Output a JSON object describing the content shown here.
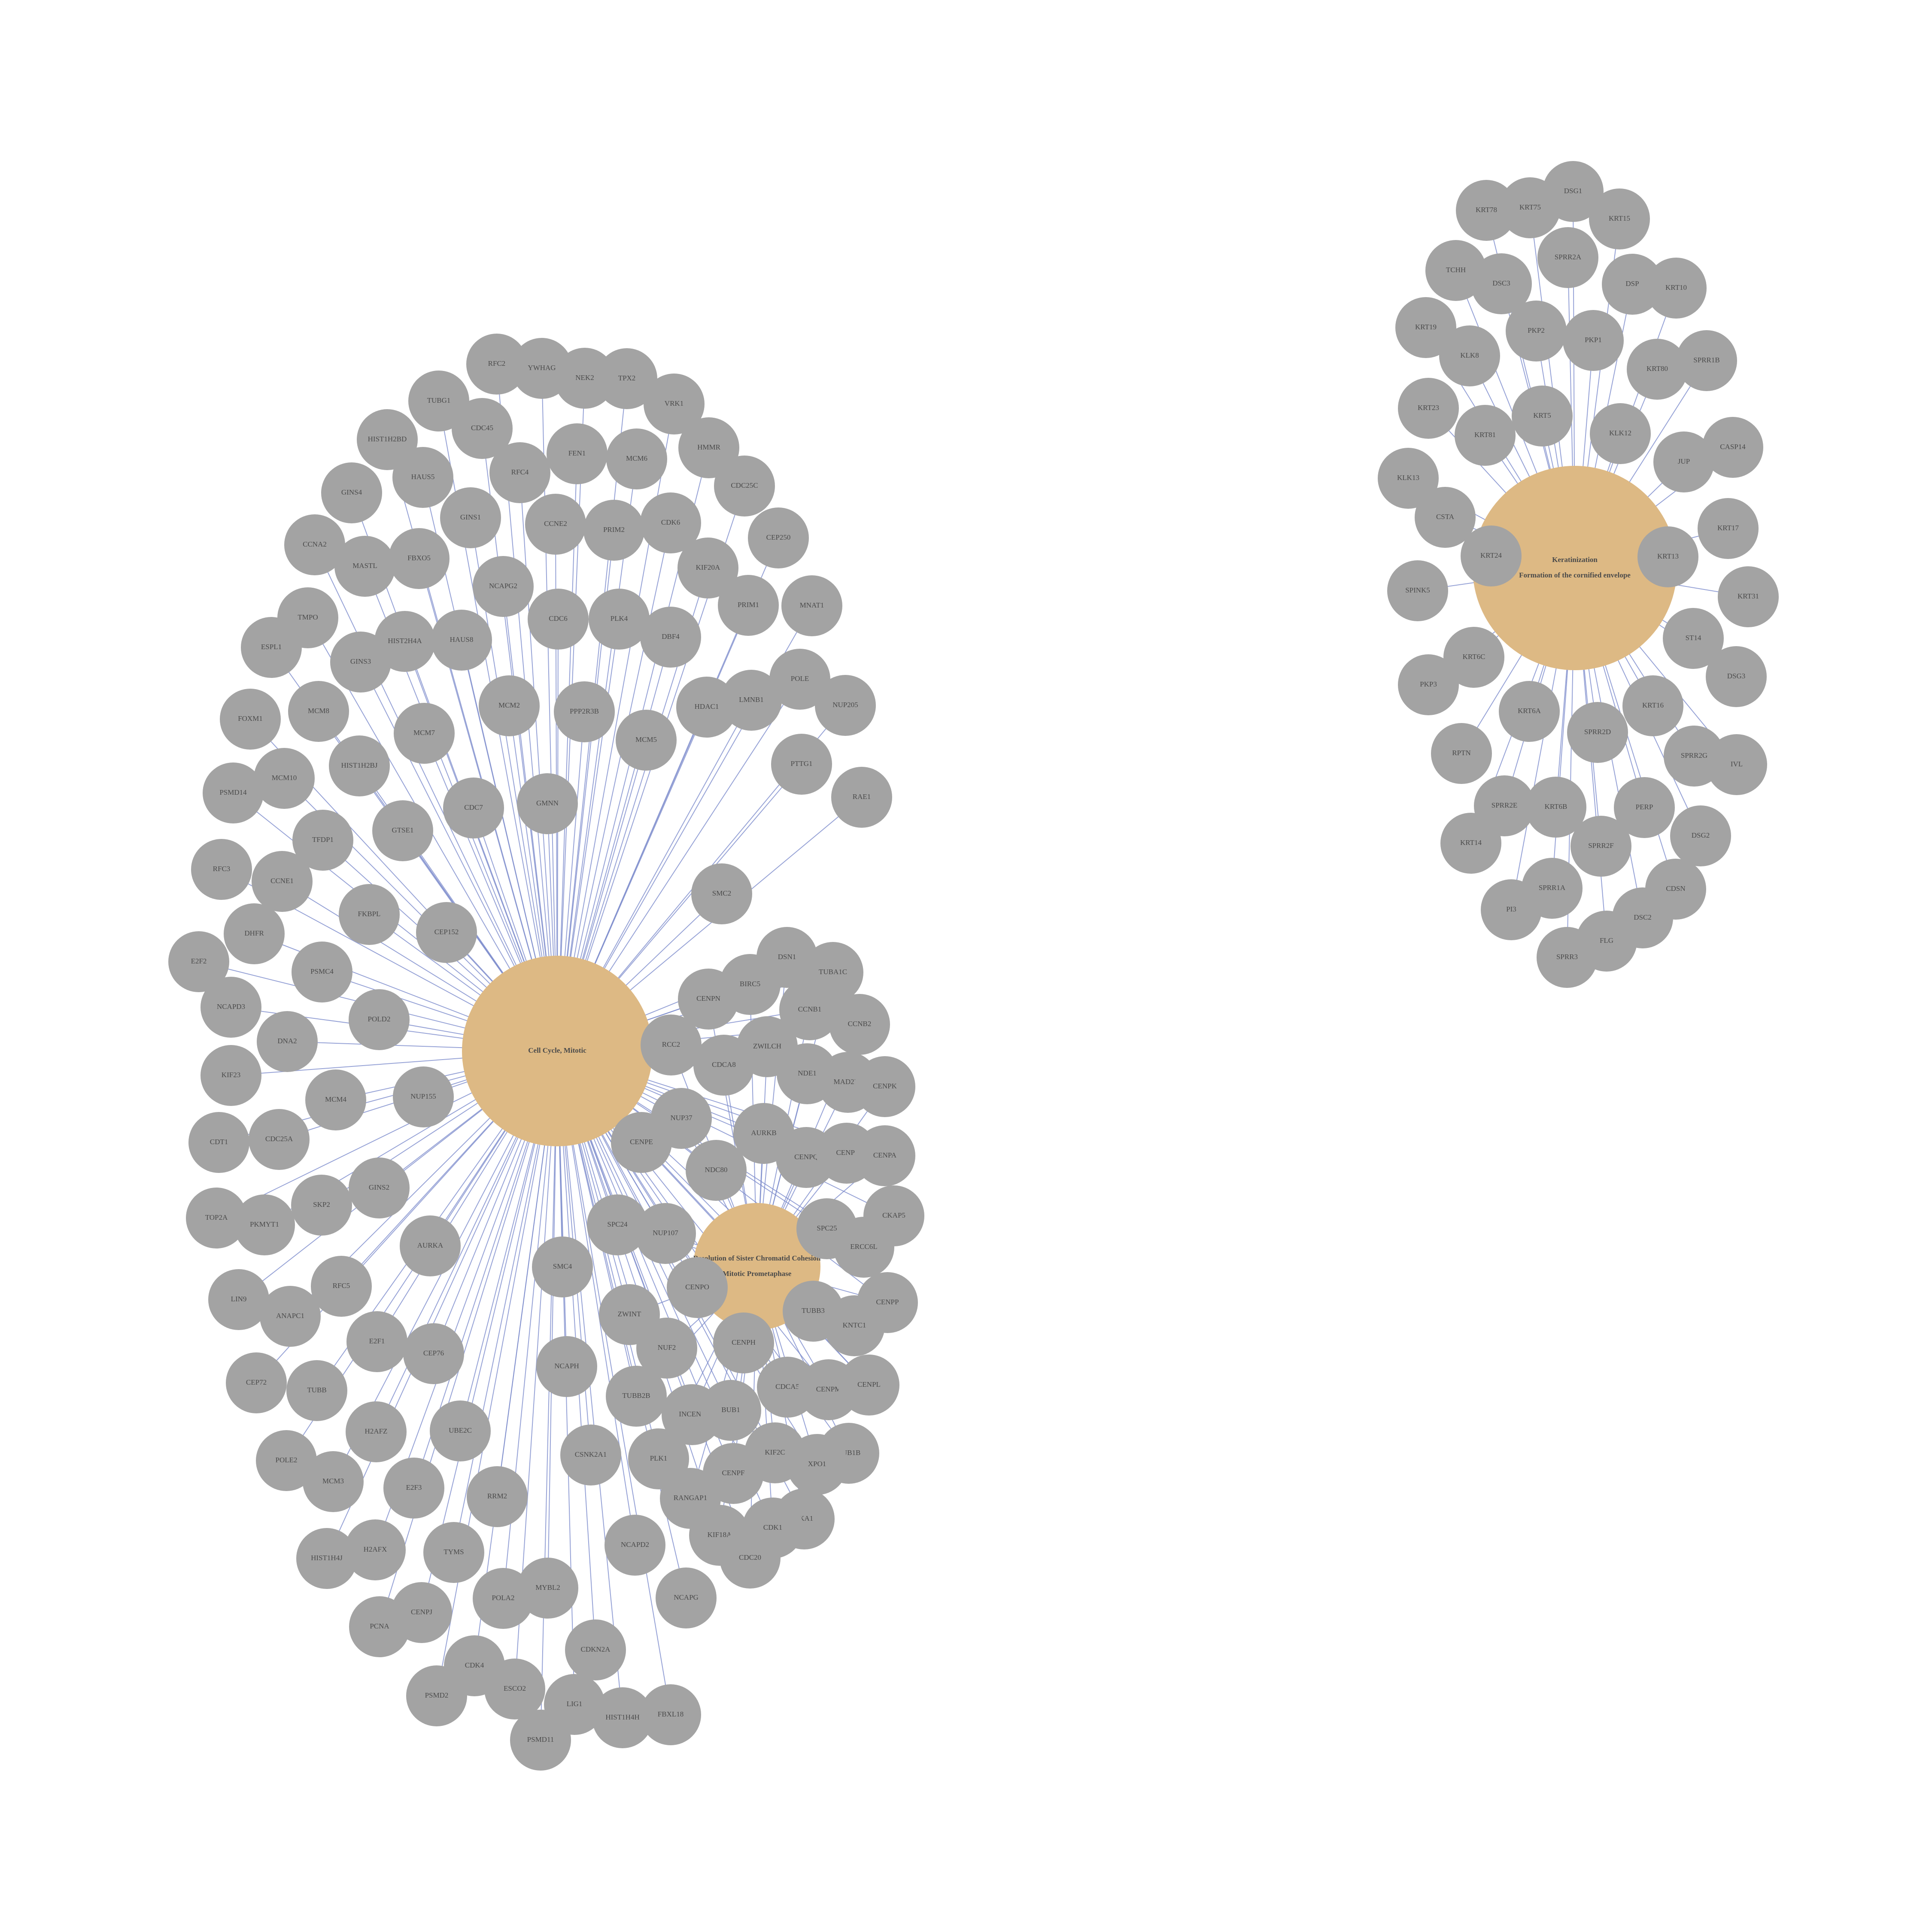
{
  "colors": {
    "gene_node": "#a3a3a3",
    "term_node": "#ddb984",
    "edge": "#7d8ccc",
    "label": "#4a4a4a",
    "background": "#ffffff"
  },
  "terms": [
    {
      "id": "cell_cycle",
      "lines": [
        "Cell Cycle, Mitotic"
      ]
    },
    {
      "id": "resolution",
      "lines": [
        "Resolution of Sister Chromatid Cohesion",
        "Mitotic Prometaphase"
      ]
    },
    {
      "id": "keratinization",
      "lines": [
        "Keratinization",
        "Formation of the cornified envelope"
      ]
    }
  ],
  "genes": {
    "cell_cycle_only": [
      "RFC2",
      "YWHAG",
      "NEK2",
      "TPX2",
      "VRK1",
      "TUBG1",
      "CDC45",
      "HIST1H2BD",
      "HAUS5",
      "RFC4",
      "FEN1",
      "MCM6",
      "HMMR",
      "GINS4",
      "GINS1",
      "CDK6",
      "CDC25C",
      "CCNE2",
      "PRIM2",
      "CCNA2",
      "MASTL",
      "FBXO5",
      "KIF20A",
      "CEP250",
      "NCAPG2",
      "PRIM1",
      "MNAT1",
      "TMPO",
      "ESPL1",
      "GINS3",
      "HIST2H4A",
      "HAUS8",
      "CDC6",
      "PLK4",
      "DBF4",
      "MCM8",
      "MCM2",
      "PPP2R3B",
      "HDAC1",
      "LMNB1",
      "POLE",
      "NUP205",
      "FOXM1",
      "MCM7",
      "MCM5",
      "PSMD14",
      "MCM10",
      "HIST1H2BJ",
      "PTTG1",
      "RAE1",
      "GTSE1",
      "CDC7",
      "GMNN",
      "TFDP1",
      "RFC3",
      "CCNE1",
      "FKBPL",
      "SMC2",
      "DHFR",
      "CEP152",
      "E2F2",
      "PSMC4",
      "NCAPD3",
      "POLD2",
      "DNA2",
      "KIF23",
      "MCM4",
      "NUP155",
      "CDT1",
      "CDC25A",
      "GINS2",
      "TOP2A",
      "SKP2",
      "PKMYT1",
      "AURKA",
      "SMC4",
      "LIN9",
      "RFC5",
      "ANAPC1",
      "E2F1",
      "CEP76",
      "NCAPH",
      "CEP72",
      "TUBB",
      "H2AFZ",
      "UBE2C",
      "CSNK2A1",
      "POLE2",
      "MCM3",
      "E2F3",
      "RRM2",
      "NCAPD2",
      "HIST1H4J",
      "H2AFX",
      "TYMS",
      "NCAPG",
      "POLA2",
      "MYBL2",
      "PCNA",
      "CENPJ",
      "CDKN2A",
      "CDK4",
      "PSMD2",
      "ESCO2",
      "LIG1",
      "HIST1H4H",
      "FBXL18",
      "PSMD11"
    ],
    "mitotic_shared": [
      "DSN1",
      "TUBA1C",
      "BIRC5",
      "CENPN",
      "CCNB1",
      "CCNB2",
      "RCC2",
      "ZWILCH",
      "CDCA8",
      "NDE1",
      "MAD2L1",
      "CENPK",
      "NUP37",
      "AURKB",
      "CENPE",
      "CENPQ",
      "CENPI",
      "CENPA",
      "NDC80",
      "CKAP5",
      "SPC25",
      "SPC24",
      "NUP107",
      "ERCC6L",
      "CENPO",
      "CENPP",
      "ZWINT",
      "TUBB3",
      "KNTC1",
      "NUF2",
      "CENPH",
      "CDCA5",
      "CENPM",
      "CENPL",
      "TUBB2B",
      "INCENP",
      "BUB1",
      "KIF2C",
      "BUB1B",
      "XPO1",
      "PLK1",
      "CENPF",
      "RANGAP1",
      "SKA1",
      "CDK1",
      "KIF18A",
      "CDC20"
    ],
    "keratinization": [
      "DSG1",
      "KRT78",
      "KRT75",
      "KRT15",
      "TCHH",
      "DSC3",
      "SPRR2A",
      "DSP",
      "KRT10",
      "KRT19",
      "PKP2",
      "PKP1",
      "KLK8",
      "KRT80",
      "SPRR1B",
      "KRT23",
      "KRT5",
      "KRT81",
      "KLK12",
      "CASP14",
      "KLK13",
      "JUP",
      "CSTA",
      "KRT17",
      "KRT24",
      "KRT13",
      "SPINK5",
      "KRT31",
      "ST14",
      "KRT6C",
      "DSG3",
      "PKP3",
      "KRT6A",
      "KRT16",
      "SPRR2D",
      "SPRR2G",
      "RPTN",
      "IVL",
      "SPRR2E",
      "KRT6B",
      "PERP",
      "KRT14",
      "SPRR2F",
      "DSG2",
      "SPRR1A",
      "CDSN",
      "PI3",
      "DSC2",
      "FLG",
      "SPRR3"
    ]
  }
}
